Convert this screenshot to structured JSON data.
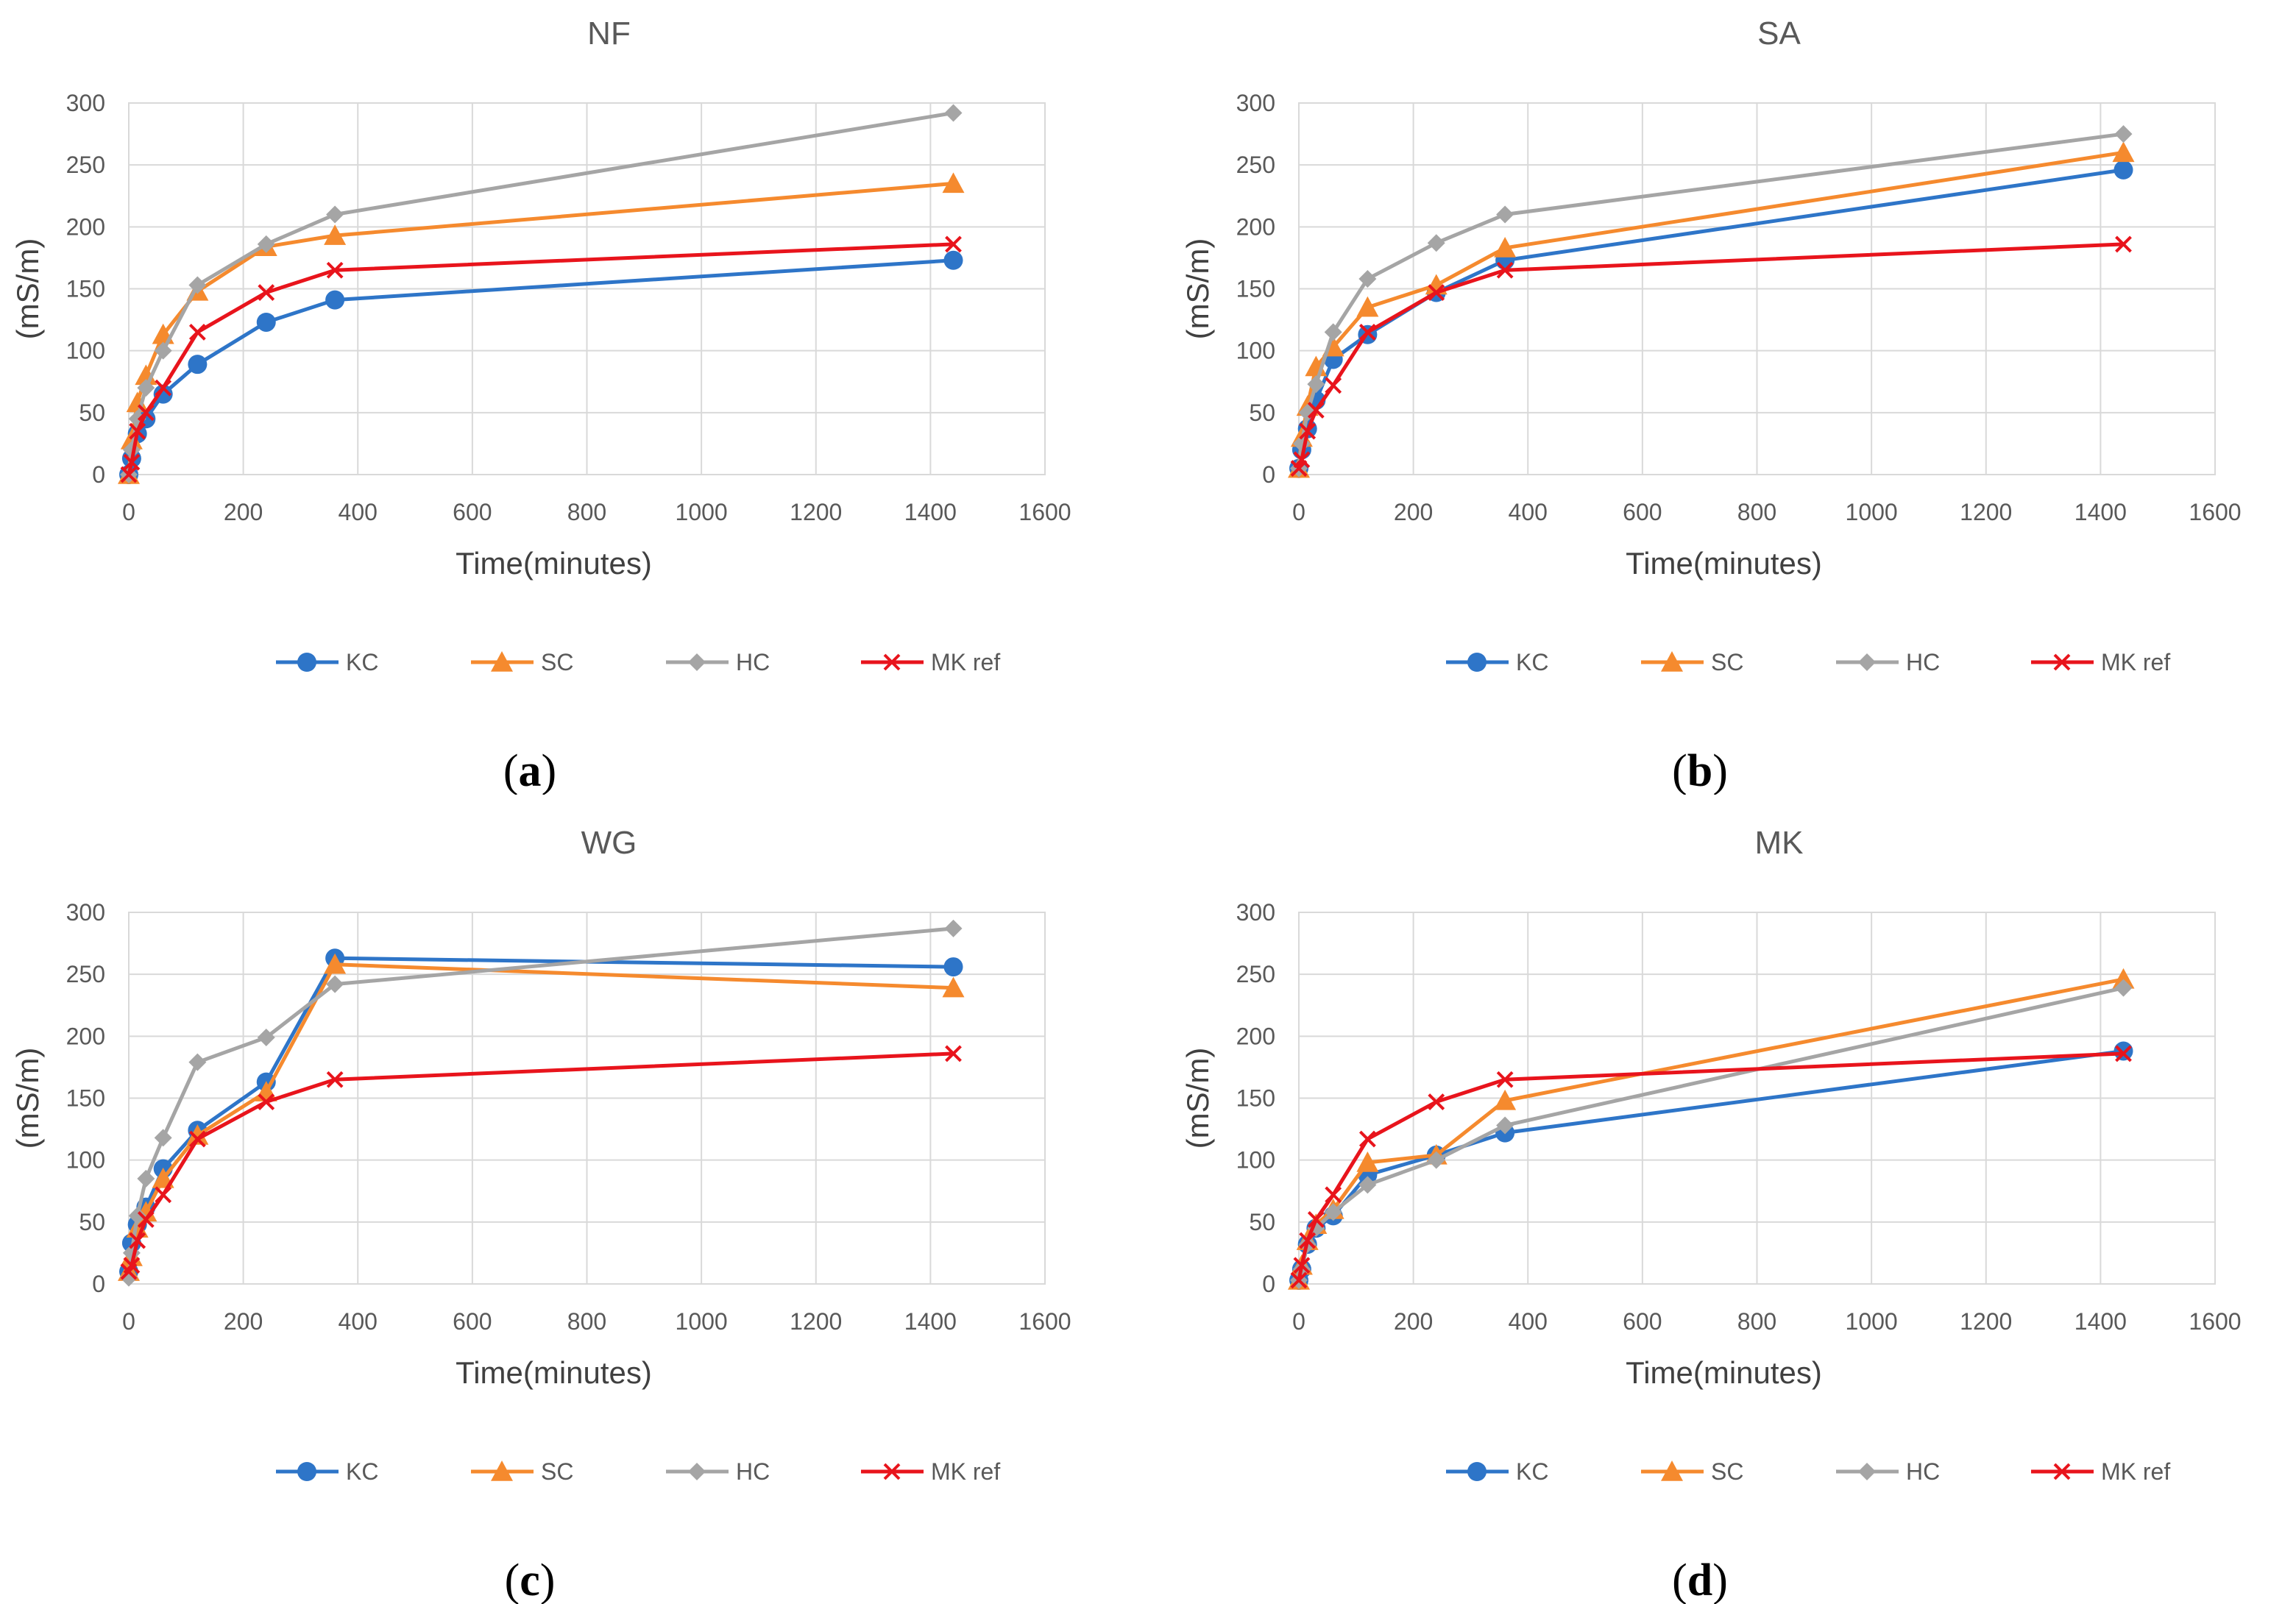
{
  "chart_data": [
    {
      "type": "line",
      "title": "NF",
      "caption_letter": "a",
      "xlabel": "Time(minutes)",
      "ylabel": "(mS/m)",
      "xlim": [
        0,
        1600
      ],
      "ylim": [
        0,
        300
      ],
      "xticks": [
        0,
        200,
        400,
        600,
        800,
        1000,
        1200,
        1400,
        1600
      ],
      "yticks": [
        0,
        50,
        100,
        150,
        200,
        250,
        300
      ],
      "grid": true,
      "legend_position": "bottom",
      "x": [
        0,
        5,
        15,
        30,
        60,
        120,
        240,
        360,
        1440
      ],
      "series": [
        {
          "name": "KC",
          "color": "#2E75C8",
          "marker": "circle",
          "values": [
            0,
            13,
            33,
            45,
            65,
            89,
            123,
            141,
            173
          ]
        },
        {
          "name": "SC",
          "color": "#F58A2E",
          "marker": "triangle",
          "values": [
            0,
            28,
            58,
            80,
            113,
            148,
            184,
            193,
            235
          ]
        },
        {
          "name": "HC",
          "color": "#A5A5A5",
          "marker": "diamond",
          "values": [
            0,
            20,
            45,
            70,
            100,
            153,
            186,
            210,
            292
          ]
        },
        {
          "name": "MK ref",
          "color": "#E8141C",
          "marker": "x",
          "values": [
            0,
            10,
            35,
            50,
            70,
            115,
            147,
            165,
            186
          ]
        }
      ]
    },
    {
      "type": "line",
      "title": "SA",
      "caption_letter": "b",
      "xlabel": "Time(minutes)",
      "ylabel": "(mS/m)",
      "xlim": [
        0,
        1600
      ],
      "ylim": [
        0,
        300
      ],
      "xticks": [
        0,
        200,
        400,
        600,
        800,
        1000,
        1200,
        1400,
        1600
      ],
      "yticks": [
        0,
        50,
        100,
        150,
        200,
        250,
        300
      ],
      "grid": true,
      "legend_position": "bottom",
      "x": [
        0,
        5,
        15,
        30,
        60,
        120,
        240,
        360,
        1440
      ],
      "series": [
        {
          "name": "KC",
          "color": "#2E75C8",
          "marker": "circle",
          "values": [
            5,
            20,
            37,
            60,
            93,
            113,
            147,
            173,
            246
          ]
        },
        {
          "name": "SC",
          "color": "#F58A2E",
          "marker": "triangle",
          "values": [
            5,
            30,
            55,
            87,
            103,
            135,
            153,
            183,
            260
          ]
        },
        {
          "name": "HC",
          "color": "#A5A5A5",
          "marker": "diamond",
          "values": [
            5,
            25,
            50,
            73,
            115,
            158,
            187,
            210,
            275
          ]
        },
        {
          "name": "MK ref",
          "color": "#E8141C",
          "marker": "x",
          "values": [
            5,
            12,
            35,
            52,
            72,
            115,
            147,
            165,
            186
          ]
        }
      ]
    },
    {
      "type": "line",
      "title": "WG",
      "caption_letter": "c",
      "xlabel": "Time(minutes)",
      "ylabel": "(mS/m)",
      "xlim": [
        0,
        1600
      ],
      "ylim": [
        0,
        300
      ],
      "xticks": [
        0,
        200,
        400,
        600,
        800,
        1000,
        1200,
        1400,
        1600
      ],
      "yticks": [
        0,
        50,
        100,
        150,
        200,
        250,
        300
      ],
      "grid": true,
      "legend_position": "bottom",
      "x": [
        0,
        5,
        15,
        30,
        60,
        120,
        240,
        360,
        1440
      ],
      "series": [
        {
          "name": "KC",
          "color": "#2E75C8",
          "marker": "circle",
          "values": [
            10,
            33,
            48,
            62,
            93,
            124,
            163,
            263,
            256
          ]
        },
        {
          "name": "SC",
          "color": "#F58A2E",
          "marker": "triangle",
          "values": [
            10,
            22,
            45,
            58,
            85,
            120,
            155,
            258,
            239
          ]
        },
        {
          "name": "HC",
          "color": "#A5A5A5",
          "marker": "diamond",
          "values": [
            5,
            25,
            55,
            85,
            118,
            179,
            199,
            242,
            287
          ]
        },
        {
          "name": "MK ref",
          "color": "#E8141C",
          "marker": "x",
          "values": [
            10,
            15,
            35,
            52,
            72,
            117,
            147,
            165,
            186
          ]
        }
      ]
    },
    {
      "type": "line",
      "title": "MK",
      "caption_letter": "d",
      "xlabel": "Time(minutes)",
      "ylabel": "(mS/m)",
      "xlim": [
        0,
        1600
      ],
      "ylim": [
        0,
        300
      ],
      "xticks": [
        0,
        200,
        400,
        600,
        800,
        1000,
        1200,
        1400,
        1600
      ],
      "yticks": [
        0,
        50,
        100,
        150,
        200,
        250,
        300
      ],
      "grid": true,
      "legend_position": "bottom",
      "x": [
        0,
        5,
        15,
        30,
        60,
        120,
        240,
        360,
        1440
      ],
      "series": [
        {
          "name": "KC",
          "color": "#2E75C8",
          "marker": "circle",
          "values": [
            3,
            12,
            32,
            45,
            55,
            88,
            104,
            122,
            188
          ]
        },
        {
          "name": "SC",
          "color": "#F58A2E",
          "marker": "triangle",
          "values": [
            3,
            15,
            35,
            48,
            60,
            98,
            104,
            148,
            246
          ]
        },
        {
          "name": "HC",
          "color": "#A5A5A5",
          "marker": "diamond",
          "values": [
            3,
            12,
            32,
            45,
            58,
            80,
            100,
            128,
            239
          ]
        },
        {
          "name": "MK ref",
          "color": "#E8141C",
          "marker": "x",
          "values": [
            3,
            15,
            35,
            52,
            72,
            117,
            147,
            165,
            186
          ]
        }
      ]
    }
  ]
}
